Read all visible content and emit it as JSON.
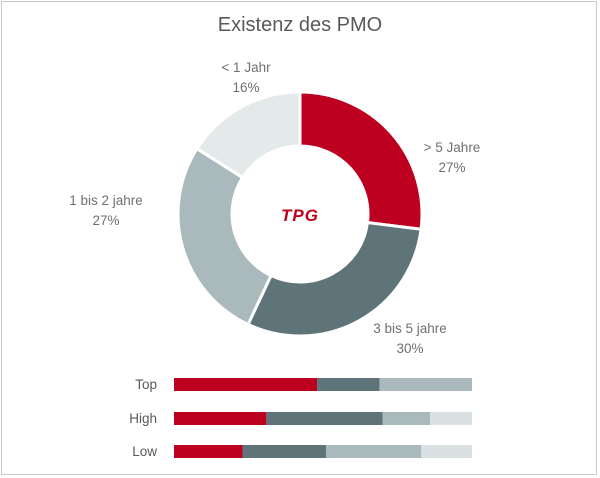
{
  "chart_data": {
    "type": "pie",
    "title": "Existenz des PMO",
    "center_logo": "TPG",
    "slices": [
      {
        "name": "> 5 Jahre",
        "value": 27,
        "label": "27%",
        "color": "#be0020"
      },
      {
        "name": "3 bis 5 jahre",
        "value": 30,
        "label": "30%",
        "color": "#5f7479"
      },
      {
        "name": "1 bis 2 jahre",
        "value": 27,
        "label": "27%",
        "color": "#a9b9bc"
      },
      {
        "name": "< 1 Jahr",
        "value": 16,
        "label": "16%",
        "color": "#e4e9ea"
      }
    ],
    "bars": {
      "type": "bar",
      "orientation": "horizontal-stacked",
      "categories": [
        "Top",
        "High",
        "Low"
      ],
      "series": [
        {
          "values": [
            48,
            31,
            23
          ],
          "color": "#be0020"
        },
        {
          "values": [
            21,
            39,
            28
          ],
          "color": "#5f7479"
        },
        {
          "values": [
            31,
            16,
            32
          ],
          "color": "#a9b9bc"
        },
        {
          "values": [
            0,
            14,
            17
          ],
          "color": "#d9e1e2"
        }
      ]
    }
  }
}
